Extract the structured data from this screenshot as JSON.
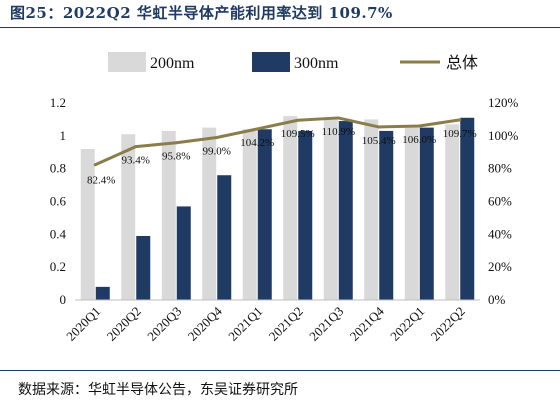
{
  "title": "图25：2022Q2 华虹半导体产能利用率达到 109.7%",
  "source": "数据来源：华虹半导体公告，东吴证券研究所",
  "chart_data": {
    "type": "bar",
    "categories": [
      "2020Q1",
      "2020Q2",
      "2020Q3",
      "2020Q4",
      "2021Q1",
      "2021Q2",
      "2021Q3",
      "2021Q4",
      "2022Q1",
      "2022Q2"
    ],
    "series": [
      {
        "name": "200nm",
        "type": "bar",
        "axis": "left",
        "color": "#d9d9d9",
        "values": [
          0.92,
          1.01,
          1.03,
          1.05,
          1.04,
          1.12,
          1.11,
          1.1,
          1.05,
          1.07
        ]
      },
      {
        "name": "300nm",
        "type": "bar",
        "axis": "left",
        "color": "#1f3a63",
        "values": [
          0.08,
          0.39,
          0.57,
          0.76,
          1.04,
          1.03,
          1.09,
          1.03,
          1.05,
          1.11
        ]
      },
      {
        "name": "总体",
        "type": "line",
        "axis": "right",
        "color": "#8b7d4a",
        "values": [
          82.4,
          93.4,
          95.8,
          99.0,
          104.2,
          109.5,
          110.9,
          105.4,
          106.0,
          109.7
        ],
        "labels": [
          "82.4%",
          "93.4%",
          "95.8%",
          "99.0%",
          "104.2%",
          "109.5%",
          "110.9%",
          "105.4%",
          "106.0%",
          "109.7%"
        ]
      }
    ],
    "left_axis": {
      "min": 0,
      "max": 1.2,
      "ticks": [
        "0",
        "0.2",
        "0.4",
        "0.6",
        "0.8",
        "1",
        "1.2"
      ]
    },
    "right_axis": {
      "min": 0,
      "max": 120,
      "ticks": [
        "0%",
        "20%",
        "40%",
        "60%",
        "80%",
        "100%",
        "120%"
      ]
    },
    "legend": {
      "position": "top",
      "items": [
        "200nm",
        "300nm",
        "总体"
      ]
    },
    "grid": false
  }
}
